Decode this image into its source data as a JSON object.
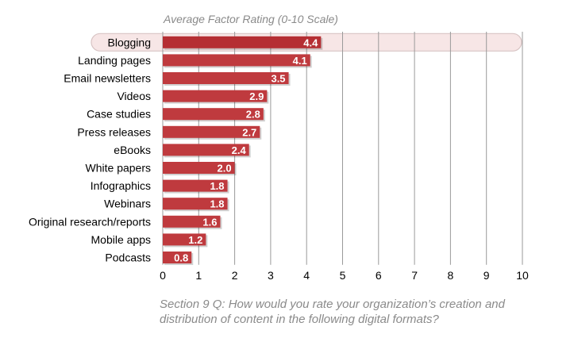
{
  "chart_data": {
    "type": "bar",
    "orientation": "horizontal",
    "subtitle": "Average Factor Rating (0-10 Scale)",
    "caption": "Section 9 Q: How would you rate your organization’s creation and distribution of content in the following digital formats?",
    "categories": [
      "Blogging",
      "Landing pages",
      "Email newsletters",
      "Videos",
      "Case studies",
      "Press releases",
      "eBooks",
      "White papers",
      "Infographics",
      "Webinars",
      "Original research/reports",
      "Mobile apps",
      "Podcasts"
    ],
    "values": [
      4.4,
      4.1,
      3.5,
      2.9,
      2.8,
      2.7,
      2.4,
      2.0,
      1.8,
      1.8,
      1.6,
      1.2,
      0.8
    ],
    "value_labels": [
      "4.4",
      "4.1",
      "3.5",
      "2.9",
      "2.8",
      "2.7",
      "2.4",
      "2.0",
      "1.8",
      "1.8",
      "1.6",
      "1.2",
      "0.8"
    ],
    "xticks": [
      "0",
      "1",
      "2",
      "3",
      "4",
      "5",
      "6",
      "7",
      "8",
      "9",
      "10"
    ],
    "xlim": [
      0,
      10
    ],
    "grid": true,
    "highlighted_category": "Blogging",
    "colors": {
      "bar": "#bf3a3e",
      "bar_highlight": "#b52e33",
      "highlight_band": "#f7e6e6",
      "highlight_band_border": "#d8c4c4",
      "grid": "#9a9a9a",
      "text_muted": "#8a8a8a"
    }
  }
}
